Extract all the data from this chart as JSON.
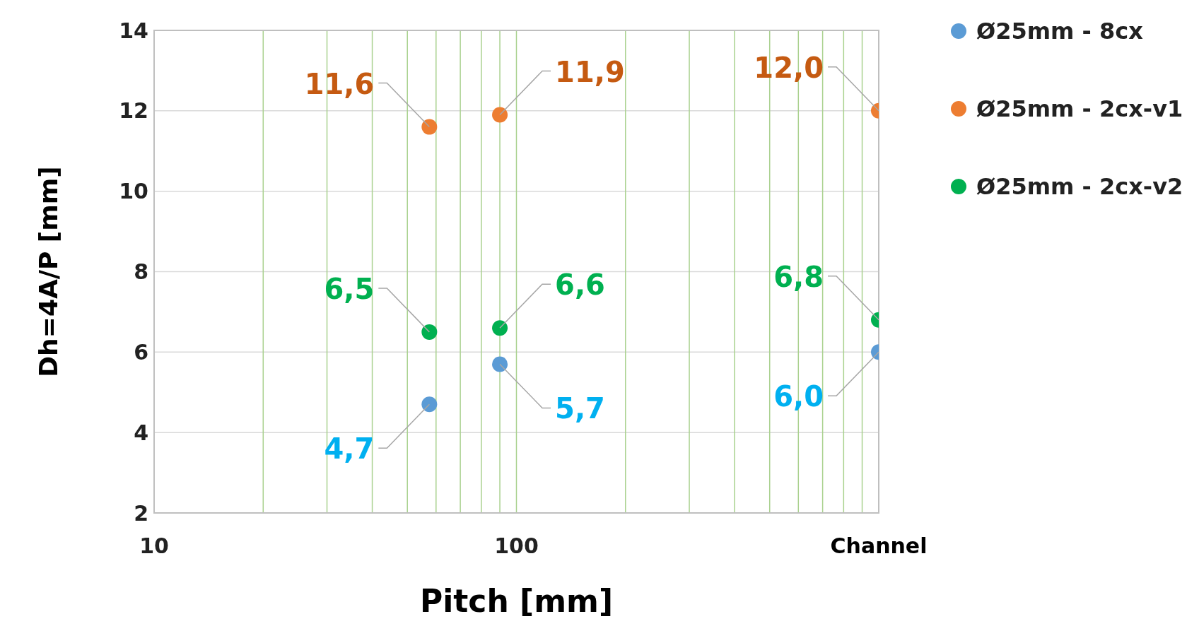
{
  "chart_data": {
    "type": "scatter",
    "xlabel": "Pitch  [mm]",
    "ylabel": "Dh=4A/P [mm]",
    "log": "x",
    "xlim": [
      10,
      1000
    ],
    "ylim": [
      2,
      14
    ],
    "xticks": [
      10,
      {
        "value": 20,
        "label": null
      },
      {
        "value": 30,
        "label": null
      },
      {
        "value": 40,
        "label": null
      },
      {
        "value": 50,
        "label": null
      },
      {
        "value": 60,
        "label": null
      },
      {
        "value": 70,
        "label": null
      },
      {
        "value": 80,
        "label": null
      },
      {
        "value": 90,
        "label": null
      },
      100,
      {
        "value": 200,
        "label": null
      },
      {
        "value": 300,
        "label": null
      },
      {
        "value": 400,
        "label": null
      },
      {
        "value": 500,
        "label": null
      },
      {
        "value": 600,
        "label": null
      },
      {
        "value": 700,
        "label": null
      },
      {
        "value": 800,
        "label": null
      },
      {
        "value": 900,
        "label": null
      },
      {
        "value": 1000,
        "label": "Channel"
      }
    ],
    "yticks": [
      2,
      4,
      6,
      8,
      10,
      12,
      14
    ],
    "grid": true,
    "legend": "top right",
    "marker": "circle",
    "series": [
      {
        "name": "Ø25mm - 8cx",
        "color": "#5b9bd5",
        "x": [
          57.5,
          90,
          1000
        ],
        "values": [
          4.7,
          5.7,
          6.0
        ],
        "value_labels": [
          "4,7",
          "5,7",
          "6,0"
        ]
      },
      {
        "name": "Ø25mm - 2cx-v1",
        "color": "#ed7d31",
        "x": [
          57.5,
          90,
          1000
        ],
        "values": [
          11.6,
          11.9,
          12.0
        ],
        "value_labels": [
          "11,6",
          "11,9",
          "12,0"
        ]
      },
      {
        "name": "Ø25mm - 2cx-v2",
        "color": "#00b050",
        "x": [
          57.5,
          90,
          1000
        ],
        "values": [
          6.5,
          6.6,
          6.8
        ],
        "value_labels": [
          "6,5",
          "6,6",
          "6,8"
        ]
      }
    ]
  }
}
